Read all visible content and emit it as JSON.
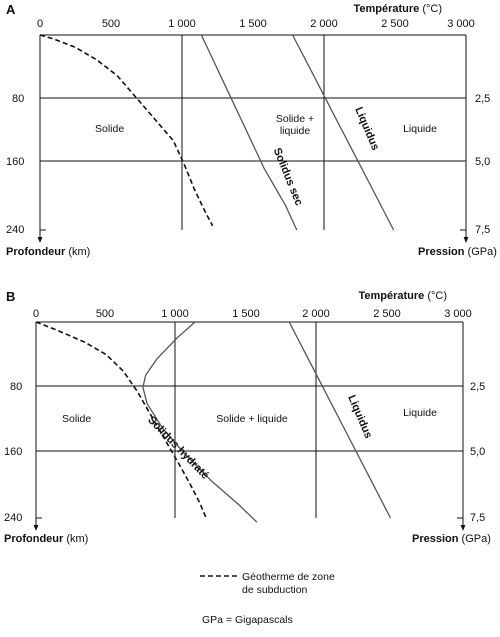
{
  "panels": [
    {
      "letter": "A",
      "temperature_title": "Température",
      "temperature_unit": "(°C)",
      "depth_title": "Profondeur",
      "depth_unit": "(km)",
      "pressure_title": "Pression",
      "pressure_unit": "(GPa)",
      "temperature_ticks": [
        "0",
        "500",
        "1 000",
        "1 500",
        "2 000",
        "2 500",
        "3 000"
      ],
      "depth_ticks": [
        "80",
        "160",
        "240"
      ],
      "pressure_ticks": [
        "2,5",
        "5,0",
        "7,5"
      ],
      "regions": [
        {
          "text": [
            "Solide"
          ]
        },
        {
          "text": [
            "Solide +",
            "liquide"
          ]
        },
        {
          "text": [
            "Liquide"
          ]
        }
      ],
      "curve_labels": [
        "Solidus sec",
        "Liquidus"
      ]
    },
    {
      "letter": "B",
      "temperature_title": "Température",
      "temperature_unit": "(°C)",
      "depth_title": "Profondeur",
      "depth_unit": "(km)",
      "pressure_title": "Pression",
      "pressure_unit": "(GPa)",
      "temperature_ticks": [
        "0",
        "500",
        "1 000",
        "1 500",
        "2 000",
        "2 500",
        "3 000"
      ],
      "depth_ticks": [
        "80",
        "160",
        "240"
      ],
      "pressure_ticks": [
        "2,5",
        "5,0",
        "7,5"
      ],
      "regions": [
        {
          "text": [
            "Solide"
          ]
        },
        {
          "text": [
            "Solide + liquide"
          ]
        },
        {
          "text": [
            "Liquide"
          ]
        }
      ],
      "curve_labels": [
        "Solidus hydraté",
        "Liquidus"
      ]
    }
  ],
  "legend": {
    "geotherm": [
      "Géotherme de zone",
      "de subduction"
    ],
    "gpa_note": "GPa = Gigapascals"
  },
  "chart_data": [
    {
      "panel": "A",
      "type": "line",
      "x_axis": {
        "label": "Température (°C)",
        "range": [
          0,
          3000
        ],
        "position": "top"
      },
      "y_axis": {
        "label": "Profondeur (km)",
        "range": [
          0,
          240
        ],
        "inverted": true
      },
      "y2_axis": {
        "label": "Pression (GPa)",
        "ticks": [
          2.5,
          5.0,
          7.5
        ]
      },
      "grid": true,
      "series": [
        {
          "name": "Géotherme de zone de subduction",
          "style": "dashed",
          "points": [
            [
              0,
              0
            ],
            [
              100,
              5
            ],
            [
              250,
              15
            ],
            [
              400,
              30
            ],
            [
              550,
              50
            ],
            [
              650,
              70
            ],
            [
              750,
              90
            ],
            [
              850,
              110
            ],
            [
              950,
              130
            ],
            [
              1030,
              160
            ],
            [
              1100,
              190
            ],
            [
              1170,
              215
            ],
            [
              1230,
              235
            ]
          ]
        },
        {
          "name": "Solidus sec",
          "style": "solid",
          "points": [
            [
              1150,
              0
            ],
            [
              1300,
              55
            ],
            [
              1450,
              110
            ],
            [
              1600,
              165
            ],
            [
              1750,
              210
            ],
            [
              1830,
              240
            ]
          ]
        },
        {
          "name": "Liquidus",
          "style": "solid",
          "points": [
            [
              1800,
              0
            ],
            [
              1950,
              50
            ],
            [
              2100,
              100
            ],
            [
              2250,
              150
            ],
            [
              2400,
              200
            ],
            [
              2520,
              240
            ]
          ]
        }
      ]
    },
    {
      "panel": "B",
      "type": "line",
      "x_axis": {
        "label": "Température (°C)",
        "range": [
          0,
          3000
        ],
        "position": "top"
      },
      "y_axis": {
        "label": "Profondeur (km)",
        "range": [
          0,
          240
        ],
        "inverted": true
      },
      "y2_axis": {
        "label": "Pression (GPa)",
        "ticks": [
          2.5,
          5.0,
          7.5
        ]
      },
      "grid": true,
      "series": [
        {
          "name": "Géotherme de zone de subduction",
          "style": "dashed",
          "points": [
            [
              0,
              0
            ],
            [
              150,
              10
            ],
            [
              350,
              25
            ],
            [
              500,
              40
            ],
            [
              620,
              60
            ],
            [
              720,
              85
            ],
            [
              820,
              115
            ],
            [
              920,
              145
            ],
            [
              1020,
              175
            ],
            [
              1100,
              200
            ],
            [
              1160,
              220
            ],
            [
              1210,
              240
            ]
          ]
        },
        {
          "name": "Solidus hydraté",
          "style": "solid",
          "points": [
            [
              1130,
              0
            ],
            [
              1000,
              20
            ],
            [
              860,
              45
            ],
            [
              780,
              65
            ],
            [
              760,
              80
            ],
            [
              790,
              100
            ],
            [
              900,
              130
            ],
            [
              1050,
              160
            ],
            [
              1250,
              195
            ],
            [
              1450,
              225
            ],
            [
              1570,
              245
            ]
          ]
        },
        {
          "name": "Liquidus",
          "style": "solid",
          "points": [
            [
              1800,
              0
            ],
            [
              1950,
              50
            ],
            [
              2100,
              100
            ],
            [
              2250,
              150
            ],
            [
              2400,
              200
            ],
            [
              2520,
              240
            ]
          ]
        }
      ]
    }
  ]
}
